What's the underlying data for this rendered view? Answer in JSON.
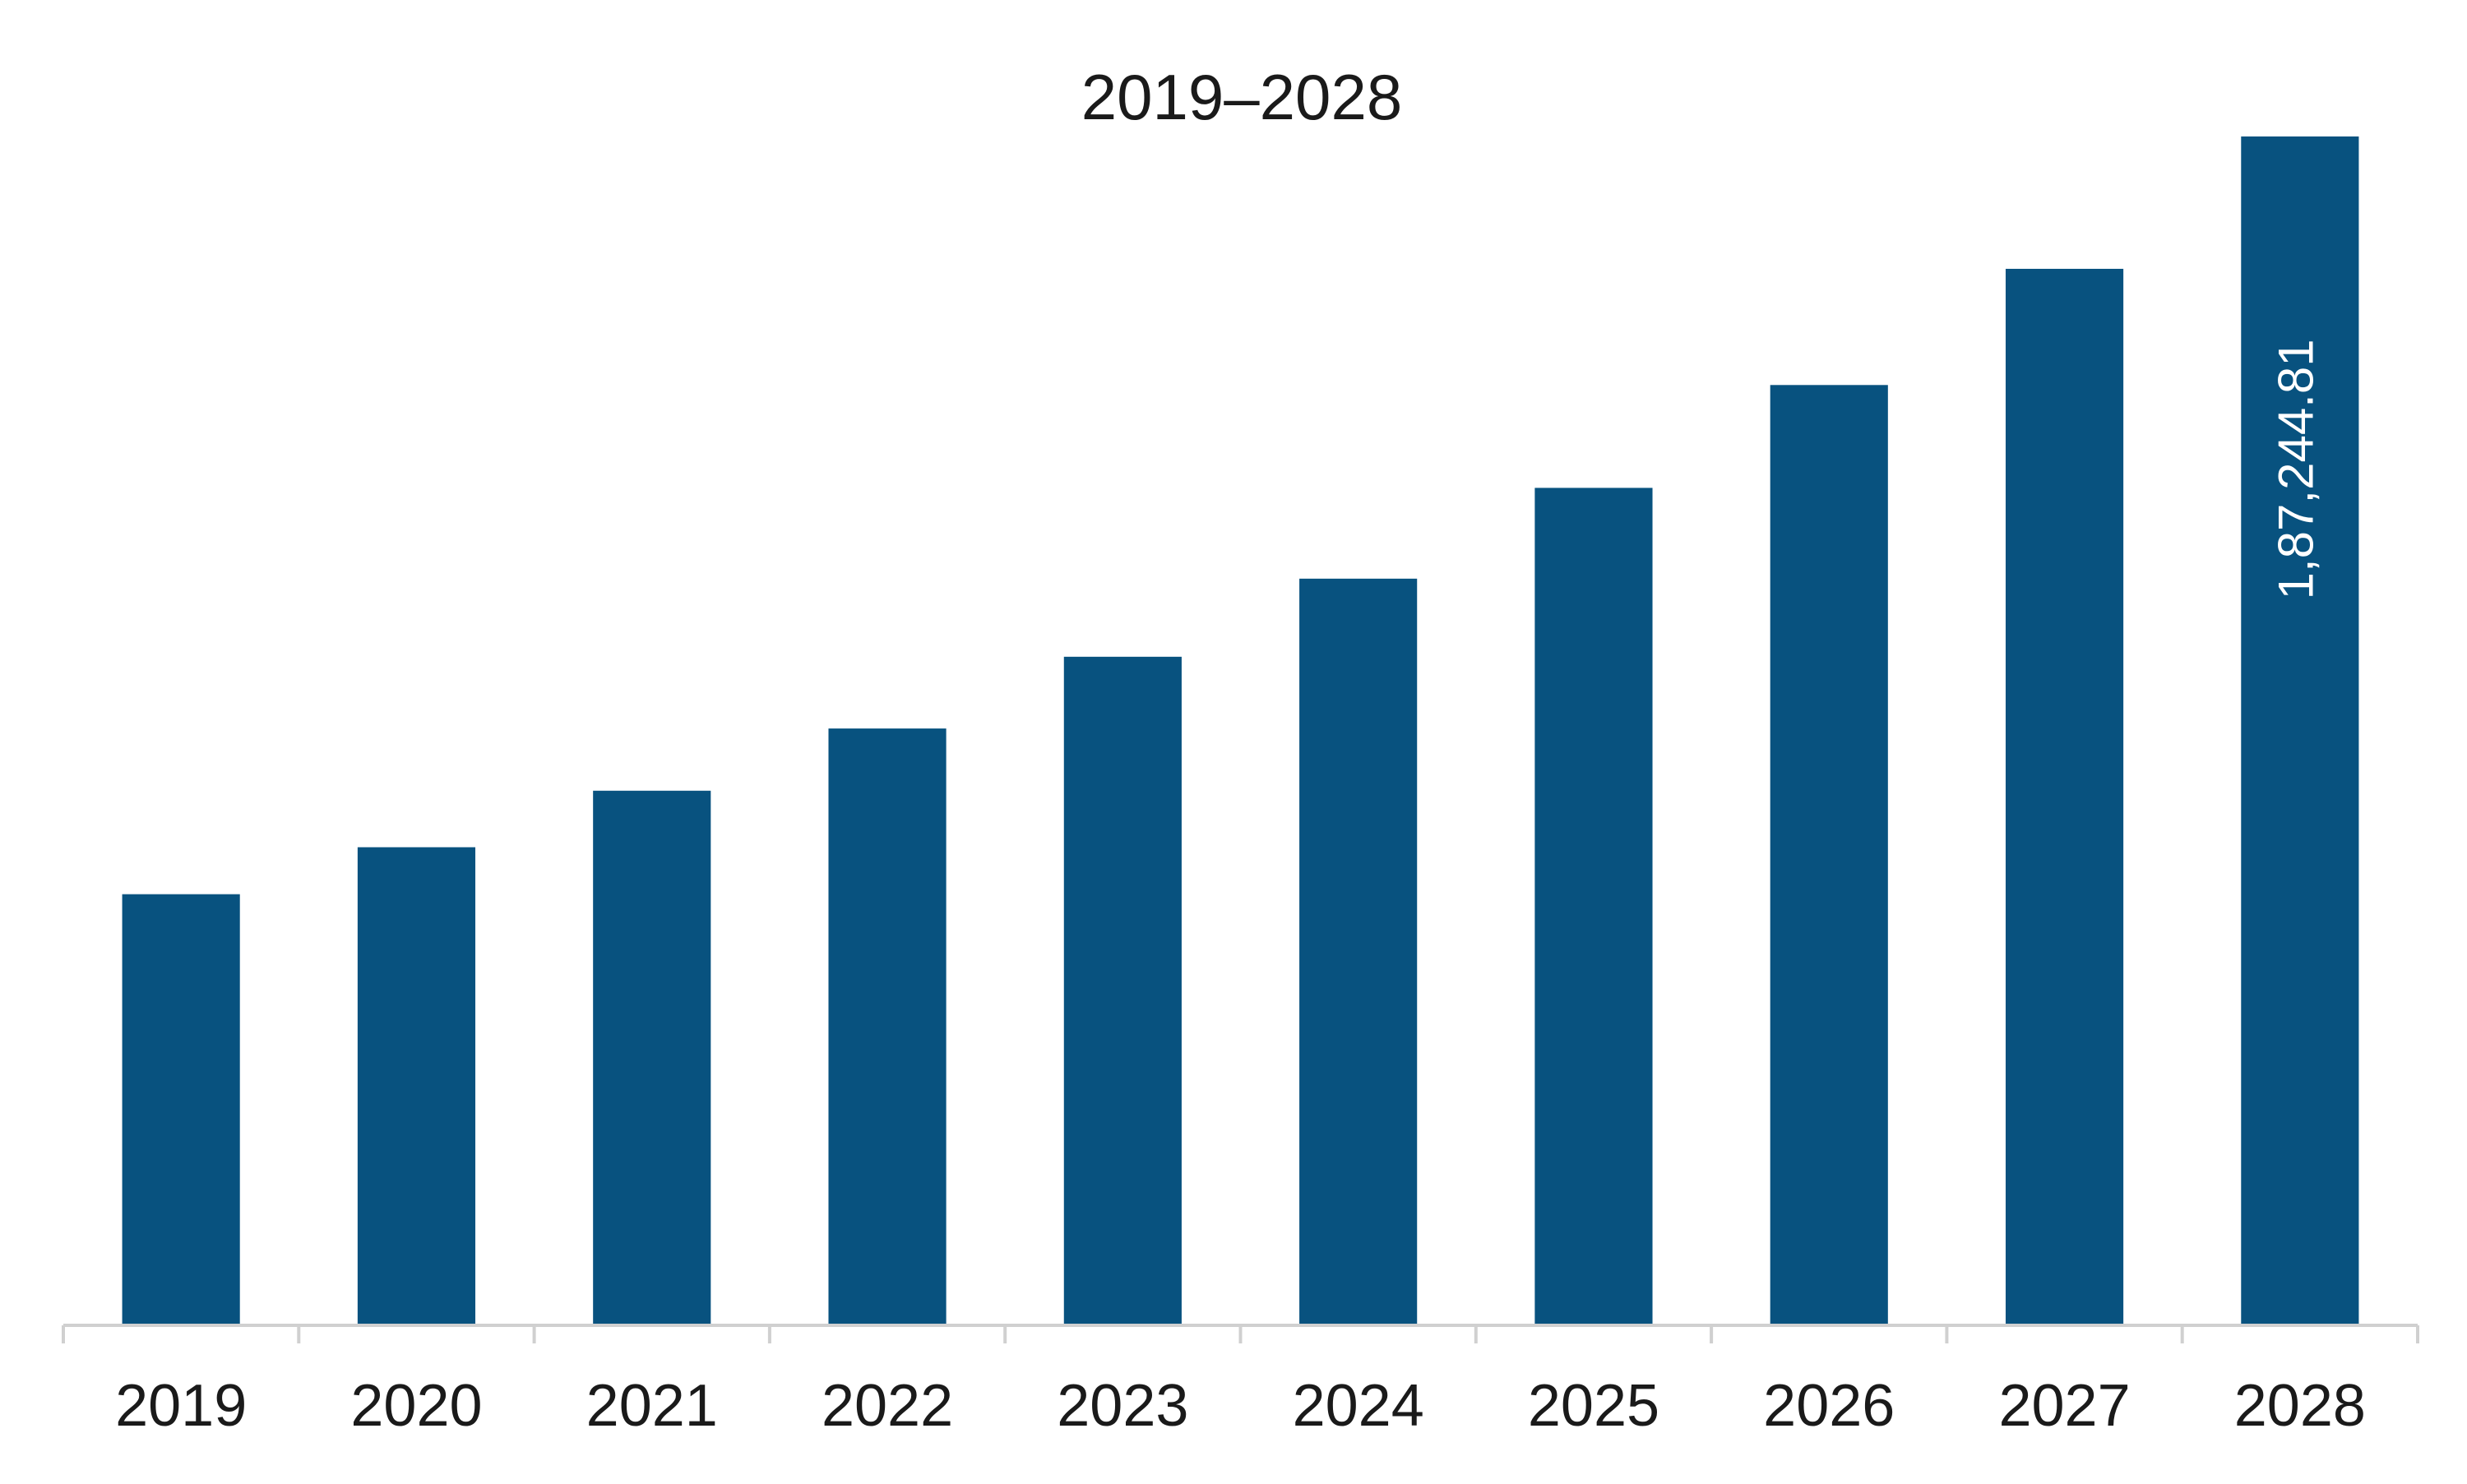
{
  "chart_data": {
    "type": "bar",
    "title": "2019–2028",
    "xlabel": "",
    "ylabel": "",
    "categories": [
      "2019",
      "2020",
      "2021",
      "2022",
      "2023",
      "2024",
      "2025",
      "2026",
      "2027",
      "2028"
    ],
    "values": [
      67900,
      75300,
      84200,
      94000,
      105300,
      117600,
      131900,
      148100,
      166400,
      187244.81
    ],
    "data_labels": [
      "",
      "",
      "",
      "",
      "",
      "",
      "",
      "",
      "",
      "1,87,244.81"
    ],
    "ylim": [
      0,
      187244.81
    ],
    "grid": false,
    "legend": "none",
    "colors": {
      "bar": "#08527f",
      "axis": "#d0d0d0",
      "text": "#1a1a1a",
      "data_label": "#ffffff"
    }
  }
}
